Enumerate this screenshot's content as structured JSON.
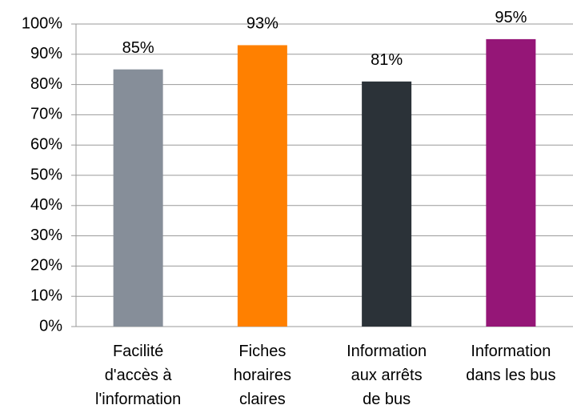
{
  "chart_data": {
    "type": "bar",
    "categories": [
      "Facilité\nd'accès à\nl'information",
      "Fiches\nhoraires\nclaires",
      "Information\naux arrêts\nde bus",
      "Information\ndans les bus"
    ],
    "values": [
      85,
      93,
      81,
      95
    ],
    "value_labels": [
      "85%",
      "93%",
      "81%",
      "95%"
    ],
    "colors": [
      "#868e99",
      "#ff8000",
      "#2b3238",
      "#951677"
    ],
    "ylim": [
      0,
      100
    ],
    "yticks": [
      {
        "value": 0,
        "label": "0%"
      },
      {
        "value": 10,
        "label": "10%"
      },
      {
        "value": 20,
        "label": "20%"
      },
      {
        "value": 30,
        "label": "30%"
      },
      {
        "value": 40,
        "label": "40%"
      },
      {
        "value": 50,
        "label": "50%"
      },
      {
        "value": 60,
        "label": "60%"
      },
      {
        "value": 70,
        "label": "70%"
      },
      {
        "value": 80,
        "label": "80%"
      },
      {
        "value": 90,
        "label": "90%"
      },
      {
        "value": 100,
        "label": "100%"
      }
    ],
    "grid": true
  }
}
